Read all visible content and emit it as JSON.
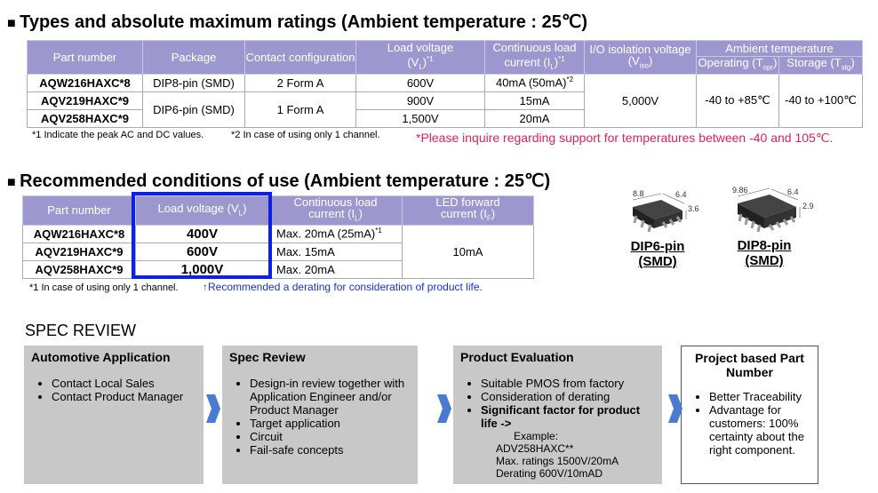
{
  "section1": {
    "title": "Types and absolute maximum ratings (Ambient temperature : 25℃)",
    "headers": {
      "part": "Part number",
      "package": "Package",
      "contact": "Contact configuration",
      "voltage": [
        "Load voltage",
        "(V",
        "L",
        ")",
        "*1"
      ],
      "current": [
        "Continuous load",
        "current (I",
        "L",
        ")",
        "*1"
      ],
      "isolation": [
        "I/O isolation voltage",
        "(V",
        "iso",
        ")"
      ],
      "ambient": "Ambient temperature",
      "operating": [
        "Operating (T",
        "opr",
        ")"
      ],
      "storage": [
        "Storage (T",
        "stg",
        ")"
      ]
    },
    "rows": [
      {
        "part": "AQW216HAXC*8",
        "package": "DIP8-pin (SMD)",
        "contact": "2 Form A",
        "voltage": "600V",
        "current": "40mA (50mA)",
        "current_note": "*2",
        "isolation": "5,000V",
        "operating": "-40 to +85℃",
        "storage": "-40 to +100℃"
      },
      {
        "part": "AQV219HAXC*9",
        "package": "DIP6-pin (SMD)",
        "contact": "1 Form A",
        "voltage": "900V",
        "current": "15mA"
      },
      {
        "part": "AQV258HAXC*9",
        "voltage": "1,500V",
        "current": "20mA"
      }
    ],
    "notes": [
      "*1 Indicate the peak AC and DC values.",
      "*2 In case of using only 1 channel."
    ],
    "inquiry": "*Please inquire regarding support for temperatures between -40 and 105℃."
  },
  "section2": {
    "title": "Recommended conditions of use (Ambient temperature : 25℃)",
    "headers": {
      "part": "Part number",
      "voltage": [
        "Load voltage (V",
        "L",
        ")"
      ],
      "current": [
        "Continuous load",
        "current (I",
        "L",
        ")"
      ],
      "led": [
        "LED forward",
        "current (I",
        "F",
        ")"
      ]
    },
    "rows": [
      {
        "part": "AQW216HAXC*8",
        "voltage": "400V",
        "current": "Max. 20mA (25mA)",
        "current_note": "*1",
        "led": "10mA"
      },
      {
        "part": "AQV219HAXC*9",
        "voltage": "600V",
        "current": "Max. 15mA"
      },
      {
        "part": "AQV258HAXC*9",
        "voltage": "1,000V",
        "current": "Max. 20mA"
      }
    ],
    "note": "*1 In case of using only 1 channel.",
    "recommendation": "↑Recommended a derating for consideration of product life."
  },
  "packages": [
    {
      "dims": [
        "8.8",
        "6.4",
        "3.6"
      ],
      "label": [
        "DIP6-pin",
        "(SMD)"
      ]
    },
    {
      "dims": [
        "9.86",
        "6.4",
        "2.9"
      ],
      "label": [
        "DIP8-pin",
        "(SMD)"
      ]
    }
  ],
  "spec_review": {
    "title": "SPEC REVIEW",
    "steps": [
      {
        "title": "Automotive Application",
        "bullets": [
          "Contact Local Sales",
          "Contact Product Manager"
        ]
      },
      {
        "title": "Spec Review",
        "bullets": [
          "Design-in review together with Application Engineer and/or Product Manager",
          "Target application",
          "Circuit",
          "Fail-safe concepts"
        ]
      },
      {
        "title": "Product Evaluation",
        "bullets": [
          "Suitable PMOS from factory",
          "Consideration of derating",
          "Significant factor for product life ->"
        ],
        "example": [
          "Example:",
          "ADV258HAXC**",
          "Max. ratings 1500V/20mA",
          "Derating 600V/10mAD"
        ]
      },
      {
        "title": "Project based Part Number",
        "bullets": [
          "Better Traceability",
          "Advantage for customers: 100% certainty about the right component."
        ]
      }
    ]
  }
}
